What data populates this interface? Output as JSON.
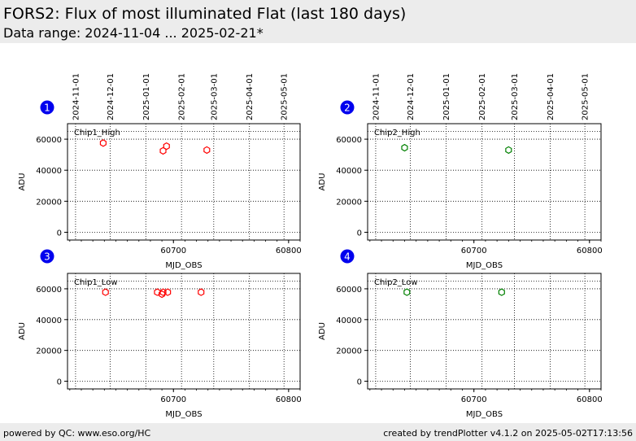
{
  "header": {
    "title": "FORS2: Flux of most illuminated Flat (last 180 days)",
    "subtitle": "Data range: 2024-11-04 ... 2025-02-21*"
  },
  "footer": {
    "left": "powered by QC: www.eso.org/HC",
    "right": "created by trendPlotter v4.1.2 on 2025-05-02T17:13:56"
  },
  "chart_data": [
    {
      "type": "scatter",
      "badge": "1",
      "panel_label": "Chip1_High",
      "color": "#ff0000",
      "xlabel": "MJD_OBS",
      "ylabel": "ADU",
      "xlim": [
        60608,
        60810
      ],
      "ylim": [
        -5000,
        70000
      ],
      "x_ticks": [
        60700,
        60800
      ],
      "y_ticks": [
        0,
        20000,
        40000,
        60000
      ],
      "reference_line": 65000,
      "top_axis_labels": [
        "2024-11-01",
        "2024-12-01",
        "2025-01-01",
        "2025-02-01",
        "2025-03-01",
        "2025-04-01",
        "2025-05-01"
      ],
      "top_axis_mjd": [
        60615,
        60645,
        60676,
        60707,
        60735,
        60766,
        60796
      ],
      "points": [
        {
          "x": 60639,
          "y": 57500
        },
        {
          "x": 60691,
          "y": 52500
        },
        {
          "x": 60694,
          "y": 55500
        },
        {
          "x": 60729,
          "y": 53000
        }
      ]
    },
    {
      "type": "scatter",
      "badge": "2",
      "panel_label": "Chip2_High",
      "color": "#008000",
      "xlabel": "MJD_OBS",
      "ylabel": "ADU",
      "xlim": [
        60608,
        60810
      ],
      "ylim": [
        -5000,
        70000
      ],
      "x_ticks": [
        60700,
        60800
      ],
      "y_ticks": [
        0,
        20000,
        40000,
        60000
      ],
      "reference_line": 65000,
      "top_axis_labels": [
        "2024-11-01",
        "2024-12-01",
        "2025-01-01",
        "2025-02-01",
        "2025-03-01",
        "2025-04-01",
        "2025-05-01"
      ],
      "top_axis_mjd": [
        60615,
        60645,
        60676,
        60707,
        60735,
        60766,
        60796
      ],
      "points": [
        {
          "x": 60640,
          "y": 54500
        },
        {
          "x": 60730,
          "y": 53000
        }
      ]
    },
    {
      "type": "scatter",
      "badge": "3",
      "panel_label": "Chip1_Low",
      "color": "#ff0000",
      "xlabel": "MJD_OBS",
      "ylabel": "ADU",
      "xlim": [
        60608,
        60810
      ],
      "ylim": [
        -5000,
        70000
      ],
      "x_ticks": [
        60700,
        60800
      ],
      "y_ticks": [
        0,
        20000,
        40000,
        60000
      ],
      "reference_line": 65000,
      "points": [
        {
          "x": 60641,
          "y": 57800
        },
        {
          "x": 60686,
          "y": 57800
        },
        {
          "x": 60690,
          "y": 56500
        },
        {
          "x": 60691,
          "y": 57800
        },
        {
          "x": 60695,
          "y": 57800
        },
        {
          "x": 60724,
          "y": 57800
        }
      ]
    },
    {
      "type": "scatter",
      "badge": "4",
      "panel_label": "Chip2_Low",
      "color": "#008000",
      "xlabel": "MJD_OBS",
      "ylabel": "ADU",
      "xlim": [
        60608,
        60810
      ],
      "ylim": [
        -5000,
        70000
      ],
      "x_ticks": [
        60700,
        60800
      ],
      "y_ticks": [
        0,
        20000,
        40000,
        60000
      ],
      "reference_line": 65000,
      "points": [
        {
          "x": 60642,
          "y": 57800
        },
        {
          "x": 60724,
          "y": 57800
        }
      ]
    }
  ]
}
